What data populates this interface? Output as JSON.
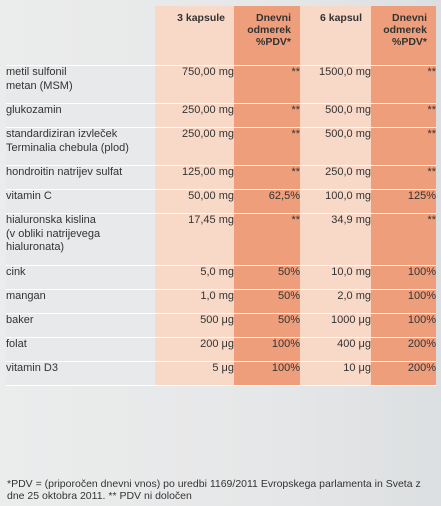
{
  "header": {
    "col1": "3 kapsule",
    "col2": "Dnevni\nodmerek\n%PDV*",
    "col3": "6 kapsul",
    "col4": "Dnevni\nodmerek\n%PDV*"
  },
  "rows": [
    {
      "name": "metil sulfonil\nmetan (MSM)",
      "v1": "750,00 mg",
      "p1": "**",
      "v2": "1500,0 mg",
      "p2": "**"
    },
    {
      "name": "glukozamin",
      "v1": "250,00 mg",
      "p1": "**",
      "v2": "500,0 mg",
      "p2": "**"
    },
    {
      "name": "standardiziran izvleček\nTerminalia chebula (plod)",
      "v1": "250,00 mg",
      "p1": "**",
      "v2": "500,0 mg",
      "p2": "**"
    },
    {
      "name": "hondroitin natrijev sulfat",
      "v1": "125,00 mg",
      "p1": "**",
      "v2": "250,0 mg",
      "p2": "**"
    },
    {
      "name": "vitamin C",
      "v1": "50,00 mg",
      "p1": "62,5%",
      "v2": "100,0 mg",
      "p2": "125%"
    },
    {
      "name": "hialuronska kislina\n(v obliki natrijevega\nhialuronata)",
      "v1": "17,45 mg",
      "p1": "**",
      "v2": "34,9 mg",
      "p2": "**"
    },
    {
      "name": "cink",
      "v1": "5,0 mg",
      "p1": "50%",
      "v2": "10,0 mg",
      "p2": "100%"
    },
    {
      "name": "mangan",
      "v1": "1,0 mg",
      "p1": "50%",
      "v2": "2,0 mg",
      "p2": "100%"
    },
    {
      "name": "baker",
      "v1": "500 μg",
      "p1": "50%",
      "v2": "1000 μg",
      "p2": "100%"
    },
    {
      "name": "folat",
      "v1": "200 μg",
      "p1": "100%",
      "v2": "400 μg",
      "p2": "200%"
    },
    {
      "name": "vitamin D3",
      "v1": "5 μg",
      "p1": "100%",
      "v2": "10 μg",
      "p2": "200%"
    }
  ],
  "footnote": "*PDV = (priporočen dnevni vnos) po uredbi 1169/2011 Evropskega parlamenta in Sveta z dne 25 oktobra 2011. ** PDV ni določen"
}
